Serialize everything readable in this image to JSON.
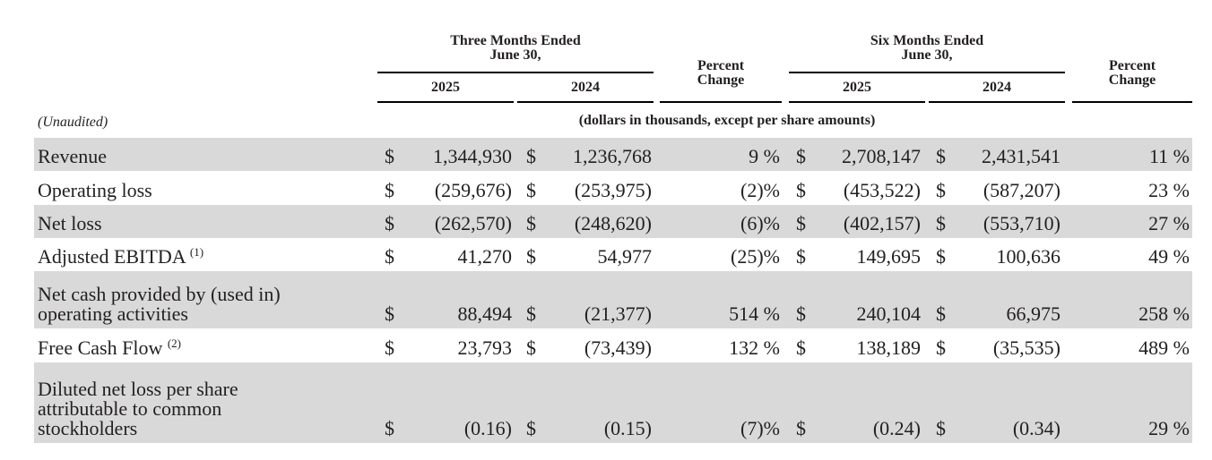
{
  "header": {
    "three_months": "Three Months Ended\nJune 30,",
    "six_months": "Six Months Ended\nJune 30,",
    "percent_change": "Percent\nChange",
    "year_2025": "2025",
    "year_2024": "2024"
  },
  "unaudited_label": "(Unaudited)",
  "units_note": "(dollars in thousands, except per share amounts)",
  "currency_symbol": "$",
  "rows": [
    {
      "label": "Revenue",
      "sup": "",
      "q2025": "1,344,930",
      "q2024": "1,236,768",
      "q_pct": "9 %",
      "h2025": "2,708,147",
      "h2024": "2,431,541",
      "h_pct": "11 %"
    },
    {
      "label": "Operating loss",
      "sup": "",
      "q2025": "(259,676)",
      "q2024": "(253,975)",
      "q_pct": "(2)%",
      "h2025": "(453,522)",
      "h2024": "(587,207)",
      "h_pct": "23 %"
    },
    {
      "label": "Net loss",
      "sup": "",
      "q2025": "(262,570)",
      "q2024": "(248,620)",
      "q_pct": "(6)%",
      "h2025": "(402,157)",
      "h2024": "(553,710)",
      "h_pct": "27 %"
    },
    {
      "label": "Adjusted EBITDA ",
      "sup": "(1)",
      "q2025": "41,270",
      "q2024": "54,977",
      "q_pct": "(25)%",
      "h2025": "149,695",
      "h2024": "100,636",
      "h_pct": "49 %"
    },
    {
      "label": "Net cash provided by (used in)\noperating activities",
      "sup": "",
      "q2025": "88,494",
      "q2024": "(21,377)",
      "q_pct": "514 %",
      "h2025": "240,104",
      "h2024": "66,975",
      "h_pct": "258 %"
    },
    {
      "label": "Free Cash Flow ",
      "sup": "(2)",
      "q2025": "23,793",
      "q2024": "(73,439)",
      "q_pct": "132 %",
      "h2025": "138,189",
      "h2024": "(35,535)",
      "h_pct": "489 %"
    },
    {
      "label": "Diluted net loss per share\nattributable to common\nstockholders",
      "sup": "",
      "q2025": "(0.16)",
      "q2024": "(0.15)",
      "q_pct": "(7)%",
      "h2025": "(0.24)",
      "h2024": "(0.34)",
      "h_pct": "29 %"
    }
  ]
}
